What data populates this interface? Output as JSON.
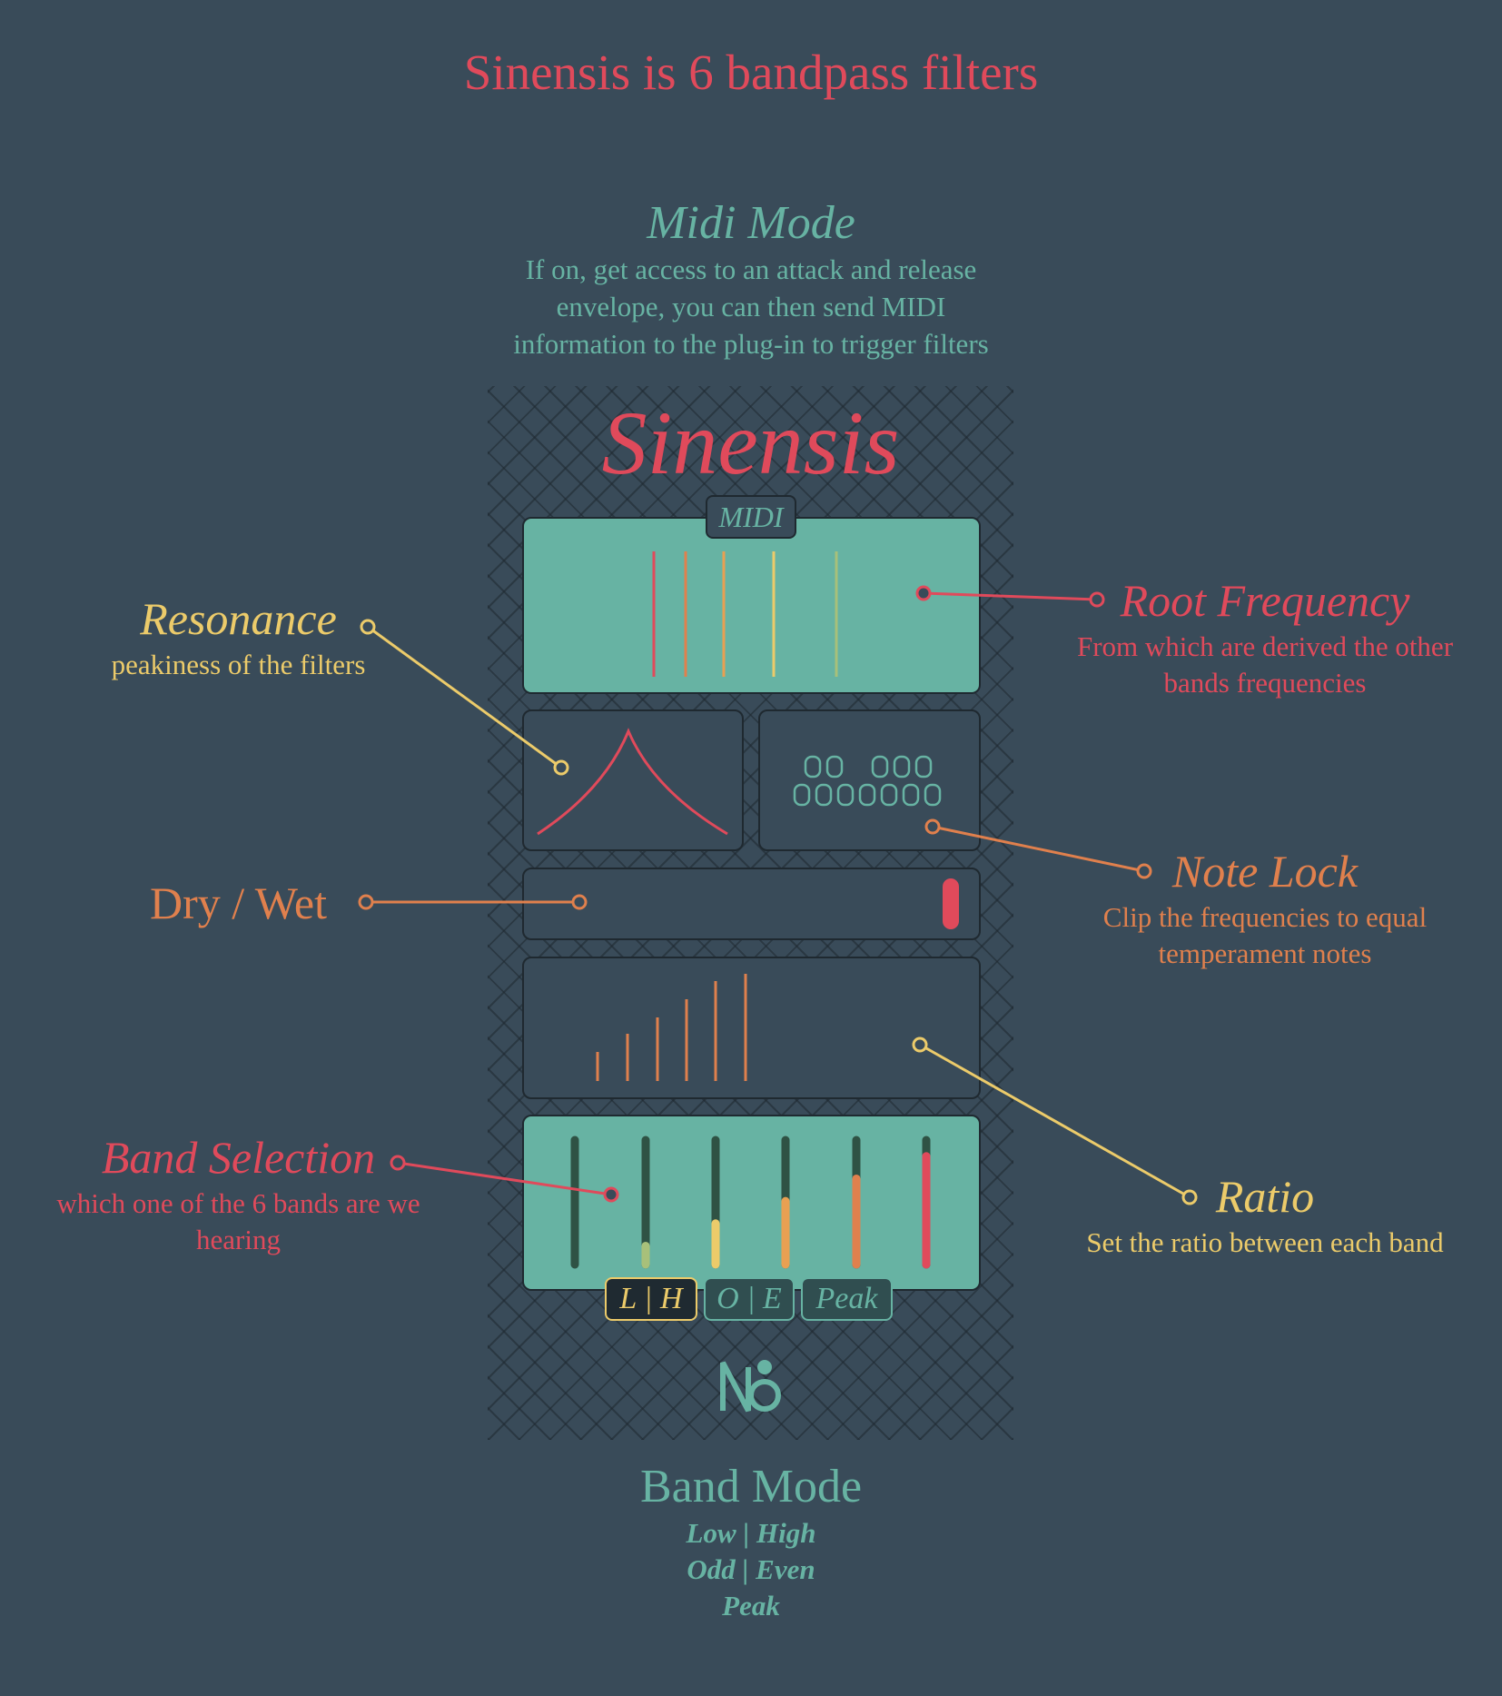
{
  "headline": "Sinensis is 6 bandpass filters",
  "midi_mode": {
    "title": "Midi Mode",
    "description_lines": [
      "If on, get access to an attack and release",
      "envelope, you can then send MIDI",
      "information to the plug-in to trigger filters"
    ]
  },
  "plugin": {
    "title": "Sinensis",
    "midi_button": "MIDI",
    "band_mode_buttons": [
      "L | H",
      "O | E",
      "Peak"
    ],
    "selected_band_mode": "L | H",
    "logo": "sinensis-logo-icon",
    "band_levels": [
      0.0,
      0.15,
      0.33,
      0.51,
      0.69,
      0.87
    ]
  },
  "labels": {
    "resonance": {
      "title": "Resonance",
      "description": "peakiness of the filters"
    },
    "root_frequency": {
      "title": "Root Frequency",
      "description_lines": [
        "From which are derived the other",
        "bands frequencies"
      ]
    },
    "dry_wet": {
      "title": "Dry / Wet"
    },
    "note_lock": {
      "title": "Note Lock",
      "description_lines": [
        "Clip the frequencies to equal",
        "temperament notes"
      ]
    },
    "band_selection": {
      "title": "Band Selection",
      "description_lines": [
        "which one of the 6 bands are we",
        "hearing"
      ]
    },
    "ratio": {
      "title": "Ratio",
      "description": "Set the ratio between each band"
    }
  },
  "band_mode": {
    "title": "Band Mode",
    "items": [
      "Low | High",
      "Odd | Even",
      "Peak"
    ]
  },
  "colors": {
    "background": "#394b59",
    "teal": "#67b3a3",
    "red": "#e04a5b",
    "yellow": "#eccb6a",
    "orange": "#e0804d"
  }
}
